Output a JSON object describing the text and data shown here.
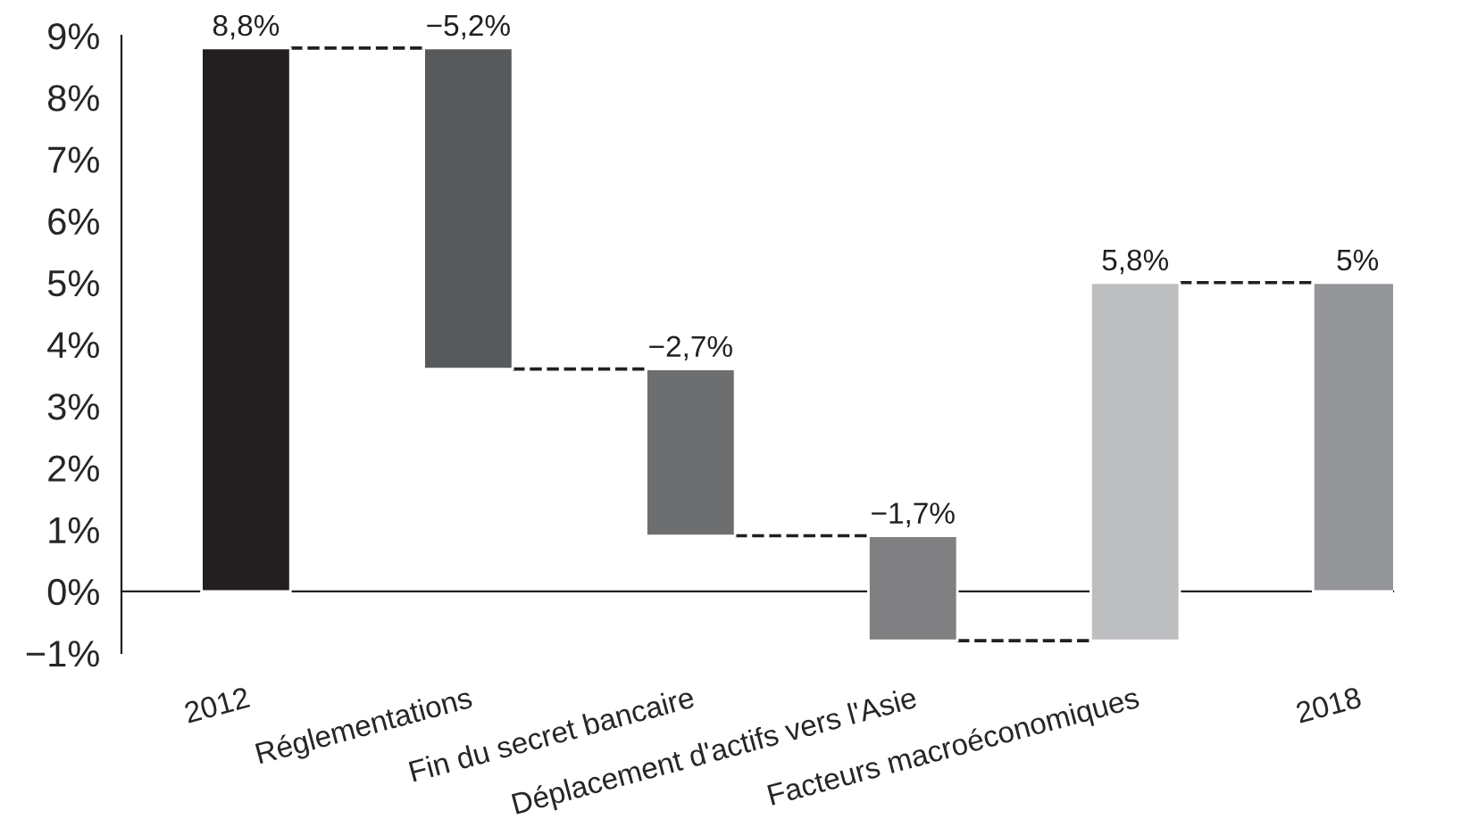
{
  "chart_data": {
    "type": "bar",
    "categories": [
      "2012",
      "Réglementations",
      "Fin du secret bancaire",
      "Déplacement d'actifs vers l'Asie",
      "Facteurs macroéconomiques",
      "2018"
    ],
    "values": [
      8.8,
      -5.2,
      -2.7,
      -1.7,
      5.8,
      5
    ],
    "base": [
      0,
      8.8,
      3.6,
      0.9,
      -0.8,
      0
    ],
    "colors": [
      "#231f20",
      "#58595b",
      "#6d6e70",
      "#808083",
      "#bcbec0",
      "#939598"
    ],
    "value_labels": [
      "8,8%",
      "−5,2%",
      "−2,7%",
      "−1,7%",
      "5,8%",
      "5%"
    ],
    "ylim": [
      -1,
      9
    ],
    "yticks": [
      {
        "value": -1,
        "label": "−1%"
      },
      {
        "value": 0,
        "label": "0%"
      },
      {
        "value": 1,
        "label": "1%"
      },
      {
        "value": 2,
        "label": "2%"
      },
      {
        "value": 3,
        "label": "3%"
      },
      {
        "value": 4,
        "label": "4%"
      },
      {
        "value": 5,
        "label": "5%"
      },
      {
        "value": 6,
        "label": "6%"
      },
      {
        "value": 7,
        "label": "7%"
      },
      {
        "value": 8,
        "label": "8%"
      },
      {
        "value": 9,
        "label": "9%"
      }
    ]
  }
}
